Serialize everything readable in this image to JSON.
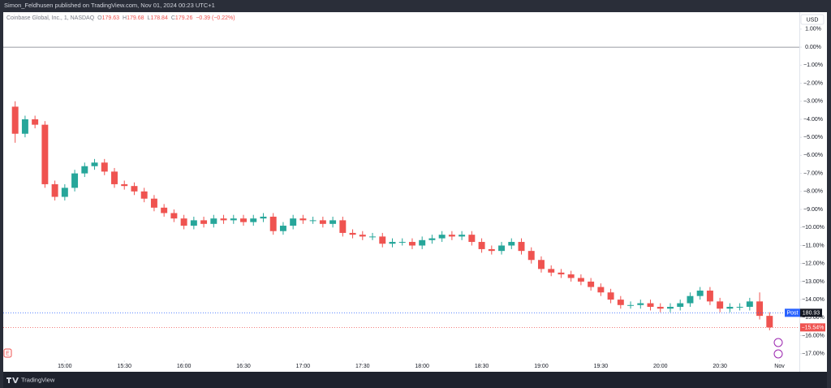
{
  "chart_data": {
    "type": "candlestick",
    "header": "Simon_Feldhusen published on TradingView.com, Nov 01, 2024 00:23 UTC+1",
    "symbol": "Coinbase Global, Inc., 1, NASDAQ",
    "legend": [
      {
        "key": "O",
        "value": 179.63
      },
      {
        "key": "H",
        "value": 179.68
      },
      {
        "key": "L",
        "value": 178.84
      },
      {
        "key": "C",
        "value": 179.26
      }
    ],
    "change": "−0.39 (−0.22%)",
    "currency": "USD",
    "up_color": "#26a69a",
    "down_color": "#ef5350",
    "x": [
      875,
      880,
      885,
      890,
      895,
      900,
      905,
      910,
      915,
      920,
      925,
      930,
      935,
      940,
      945,
      950,
      955,
      960,
      965,
      970,
      975,
      980,
      985,
      990,
      995,
      1000,
      1005,
      1010,
      1015,
      1020,
      1025,
      1030,
      1035,
      1040,
      1045,
      1050,
      1055,
      1060,
      1065,
      1070,
      1075,
      1080,
      1085,
      1090,
      1095,
      1100,
      1105,
      1110,
      1115,
      1120,
      1125,
      1130,
      1135,
      1140,
      1145,
      1150,
      1155,
      1160,
      1165,
      1170,
      1175,
      1180,
      1185,
      1190,
      1195,
      1200,
      1205,
      1210,
      1215,
      1220,
      1225,
      1230,
      1235,
      1240,
      1245,
      1250,
      1255
    ],
    "open": [
      -3.3,
      -4.8,
      -4.0,
      -4.3,
      -7.6,
      -8.3,
      -7.8,
      -7.0,
      -6.6,
      -6.4,
      -6.9,
      -7.6,
      -7.7,
      -8.0,
      -8.4,
      -8.9,
      -9.2,
      -9.5,
      -9.9,
      -9.6,
      -9.8,
      -9.5,
      -9.6,
      -9.5,
      -9.7,
      -9.5,
      -9.4,
      -10.2,
      -9.9,
      -9.5,
      -9.6,
      -9.6,
      -9.8,
      -9.6,
      -10.3,
      -10.4,
      -10.5,
      -10.5,
      -10.9,
      -10.8,
      -10.8,
      -11.0,
      -10.7,
      -10.6,
      -10.4,
      -10.5,
      -10.4,
      -10.8,
      -11.2,
      -11.3,
      -11.0,
      -10.8,
      -11.3,
      -11.8,
      -12.3,
      -12.5,
      -12.6,
      -12.8,
      -13.0,
      -13.3,
      -13.6,
      -14.0,
      -14.3,
      -14.3,
      -14.2,
      -14.4,
      -14.5,
      -14.4,
      -14.2,
      -13.8,
      -13.5,
      -14.1,
      -14.5,
      -14.4,
      -14.4,
      -14.1,
      -14.9
    ],
    "high": [
      -3.0,
      -3.8,
      -3.8,
      -4.1,
      -7.4,
      -7.6,
      -6.8,
      -6.4,
      -6.2,
      -6.2,
      -6.7,
      -7.4,
      -7.5,
      -7.8,
      -8.2,
      -8.7,
      -9.0,
      -9.3,
      -9.4,
      -9.4,
      -9.3,
      -9.3,
      -9.3,
      -9.3,
      -9.3,
      -9.2,
      -9.2,
      -9.7,
      -9.3,
      -9.3,
      -9.4,
      -9.4,
      -9.4,
      -9.4,
      -10.1,
      -10.2,
      -10.3,
      -10.3,
      -10.6,
      -10.6,
      -10.6,
      -10.5,
      -10.4,
      -10.2,
      -10.2,
      -10.2,
      -10.2,
      -10.6,
      -11.0,
      -10.8,
      -10.6,
      -10.6,
      -11.1,
      -11.6,
      -12.1,
      -12.3,
      -12.4,
      -12.6,
      -12.8,
      -13.1,
      -13.4,
      -13.8,
      -14.1,
      -14.0,
      -14.0,
      -14.2,
      -14.2,
      -14.0,
      -13.6,
      -13.3,
      -13.3,
      -13.9,
      -14.2,
      -14.2,
      -13.9,
      -13.6,
      -14.7
    ],
    "low": [
      -5.3,
      -5.0,
      -4.5,
      -7.8,
      -8.5,
      -8.5,
      -8.0,
      -7.2,
      -6.8,
      -7.1,
      -7.8,
      -7.9,
      -8.2,
      -8.6,
      -9.1,
      -9.4,
      -9.7,
      -10.1,
      -10.1,
      -10.0,
      -10.0,
      -9.8,
      -9.8,
      -9.9,
      -9.9,
      -9.7,
      -10.4,
      -10.4,
      -10.1,
      -9.8,
      -9.8,
      -10.0,
      -10.0,
      -10.5,
      -10.6,
      -10.7,
      -10.7,
      -11.1,
      -11.1,
      -11.0,
      -11.2,
      -11.2,
      -10.9,
      -10.8,
      -10.7,
      -10.7,
      -11.0,
      -11.4,
      -11.5,
      -11.5,
      -11.2,
      -11.5,
      -12.0,
      -12.5,
      -12.7,
      -12.8,
      -13.0,
      -13.2,
      -13.5,
      -13.8,
      -14.2,
      -14.5,
      -14.5,
      -14.5,
      -14.6,
      -14.7,
      -14.7,
      -14.6,
      -14.4,
      -14.0,
      -14.3,
      -14.7,
      -14.7,
      -14.6,
      -14.6,
      -15.1,
      -15.7
    ],
    "close": [
      -4.8,
      -4.0,
      -4.3,
      -7.6,
      -8.3,
      -7.8,
      -7.0,
      -6.6,
      -6.4,
      -6.9,
      -7.6,
      -7.7,
      -8.0,
      -8.4,
      -8.9,
      -9.2,
      -9.5,
      -9.9,
      -9.6,
      -9.8,
      -9.5,
      -9.6,
      -9.5,
      -9.7,
      -9.5,
      -9.4,
      -10.2,
      -9.9,
      -9.5,
      -9.6,
      -9.6,
      -9.8,
      -9.6,
      -10.3,
      -10.4,
      -10.5,
      -10.5,
      -10.9,
      -10.8,
      -10.8,
      -11.0,
      -10.7,
      -10.6,
      -10.4,
      -10.5,
      -10.4,
      -10.8,
      -11.2,
      -11.3,
      -11.0,
      -10.8,
      -11.3,
      -11.8,
      -12.3,
      -12.5,
      -12.6,
      -12.8,
      -13.0,
      -13.3,
      -13.6,
      -14.0,
      -14.3,
      -14.3,
      -14.2,
      -14.4,
      -14.5,
      -14.4,
      -14.2,
      -13.8,
      -13.5,
      -14.1,
      -14.5,
      -14.4,
      -14.4,
      -14.1,
      -14.9,
      -15.54
    ],
    "xlim": [
      869,
      1270
    ],
    "xticks": [
      {
        "value": 900,
        "label": "15:00"
      },
      {
        "value": 930,
        "label": "15:30"
      },
      {
        "value": 960,
        "label": "16:00"
      },
      {
        "value": 990,
        "label": "16:30"
      },
      {
        "value": 1020,
        "label": "17:00"
      },
      {
        "value": 1050,
        "label": "17:30"
      },
      {
        "value": 1080,
        "label": "18:00"
      },
      {
        "value": 1110,
        "label": "18:30"
      },
      {
        "value": 1140,
        "label": "19:00"
      },
      {
        "value": 1170,
        "label": "19:30"
      },
      {
        "value": 1200,
        "label": "20:00"
      },
      {
        "value": 1230,
        "label": "20:30"
      },
      {
        "value": 1260,
        "label": "Nov"
      }
    ],
    "ylim": [
      -18,
      1.94
    ],
    "yticks": [
      {
        "value": 1,
        "label": "1.00%"
      },
      {
        "value": 0,
        "label": "0.00%"
      },
      {
        "value": -1,
        "label": "−1.00%"
      },
      {
        "value": -2,
        "label": "−2.00%"
      },
      {
        "value": -3,
        "label": "−3.00%"
      },
      {
        "value": -4,
        "label": "−4.00%"
      },
      {
        "value": -5,
        "label": "−5.00%"
      },
      {
        "value": -6,
        "label": "−6.00%"
      },
      {
        "value": -7,
        "label": "−7.00%"
      },
      {
        "value": -8,
        "label": "−8.00%"
      },
      {
        "value": -9,
        "label": "−9.00%"
      },
      {
        "value": -10,
        "label": "−10.00%"
      },
      {
        "value": -11,
        "label": "−11.00%"
      },
      {
        "value": -12,
        "label": "−12.00%"
      },
      {
        "value": -13,
        "label": "−13.00%"
      },
      {
        "value": -14,
        "label": "−14.00%"
      },
      {
        "value": -15,
        "label": "−15.00%"
      },
      {
        "value": -16,
        "label": "−16.00%"
      },
      {
        "value": -17,
        "label": "−17.00%"
      }
    ],
    "grid": false,
    "baseline": 0,
    "post_line": {
      "label": "Post",
      "price": 180.93,
      "value": -14.73,
      "color": "#2962ff"
    },
    "last_value": {
      "value": -15.54,
      "label": "−15.54%",
      "color": "#ef5350"
    },
    "earnings_marker": "E",
    "footer": "TradingView"
  }
}
